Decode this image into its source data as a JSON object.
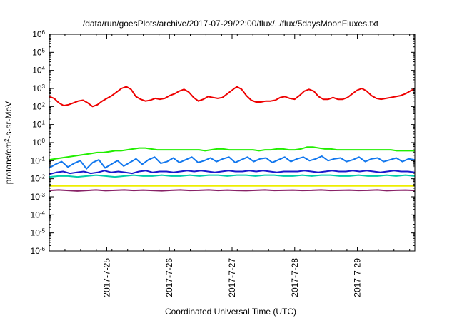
{
  "chart_data": {
    "type": "line",
    "title": "/data/run/goesPlots/archive/2017-07-29/22:00/flux/../flux/5daysMoonFluxes.txt",
    "xlabel": "Coordinated Universal Time (UTC)",
    "ylabel": "protons/cm2-s-sr-MeV",
    "ylabel_parts": {
      "pre": "protons/cm",
      "sup": "2",
      "post": "-s-sr-MeV"
    },
    "yscale": "log",
    "ylim_exponents": [
      -6,
      6
    ],
    "yticks": [
      {
        "mantissa": "10",
        "exp": "-6"
      },
      {
        "mantissa": "10",
        "exp": "-5"
      },
      {
        "mantissa": "10",
        "exp": "-4"
      },
      {
        "mantissa": "10",
        "exp": "-3"
      },
      {
        "mantissa": "10",
        "exp": "-2"
      },
      {
        "mantissa": "10",
        "exp": "-1"
      },
      {
        "mantissa": "10",
        "exp": "0"
      },
      {
        "mantissa": "10",
        "exp": "1"
      },
      {
        "mantissa": "10",
        "exp": "2"
      },
      {
        "mantissa": "10",
        "exp": "3"
      },
      {
        "mantissa": "10",
        "exp": "4"
      },
      {
        "mantissa": "10",
        "exp": "5"
      },
      {
        "mantissa": "10",
        "exp": "6"
      }
    ],
    "xlim": [
      "2017-07-24 02:00",
      "2017-07-29 22:00"
    ],
    "xticks": [
      "2017-7-25",
      "2017-7-26",
      "2017-7-27",
      "2017-7-28",
      "2017-7-29"
    ],
    "grid": false,
    "series": [
      {
        "color": "#ee0000",
        "values_log10": [
          2.55,
          2.45,
          2.2,
          2.05,
          2.1,
          2.2,
          2.3,
          2.35,
          2.2,
          2.0,
          2.1,
          2.3,
          2.45,
          2.6,
          2.8,
          3.0,
          3.1,
          2.95,
          2.55,
          2.4,
          2.3,
          2.35,
          2.45,
          2.4,
          2.45,
          2.6,
          2.7,
          2.85,
          2.95,
          2.8,
          2.5,
          2.3,
          2.4,
          2.55,
          2.5,
          2.45,
          2.5,
          2.7,
          2.9,
          3.1,
          2.95,
          2.6,
          2.35,
          2.25,
          2.25,
          2.3,
          2.3,
          2.35,
          2.5,
          2.55,
          2.45,
          2.4,
          2.6,
          2.85,
          2.95,
          2.85,
          2.55,
          2.4,
          2.4,
          2.5,
          2.4,
          2.4,
          2.5,
          2.7,
          2.9,
          3.0,
          2.85,
          2.6,
          2.45,
          2.4,
          2.45,
          2.5,
          2.55,
          2.6,
          2.7,
          2.85,
          3.0
        ]
      },
      {
        "color": "#22ee00",
        "values_log10": [
          -0.95,
          -0.9,
          -0.85,
          -0.8,
          -0.75,
          -0.7,
          -0.65,
          -0.6,
          -0.55,
          -0.55,
          -0.5,
          -0.45,
          -0.45,
          -0.4,
          -0.35,
          -0.3,
          -0.3,
          -0.35,
          -0.4,
          -0.4,
          -0.4,
          -0.4,
          -0.4,
          -0.4,
          -0.4,
          -0.4,
          -0.45,
          -0.4,
          -0.35,
          -0.35,
          -0.4,
          -0.4,
          -0.4,
          -0.4,
          -0.4,
          -0.45,
          -0.4,
          -0.4,
          -0.35,
          -0.35,
          -0.4,
          -0.4,
          -0.35,
          -0.25,
          -0.25,
          -0.3,
          -0.35,
          -0.35,
          -0.4,
          -0.4,
          -0.4,
          -0.4,
          -0.4,
          -0.4,
          -0.4,
          -0.4,
          -0.4,
          -0.4,
          -0.45,
          -0.45,
          -0.45,
          -0.45
        ]
      },
      {
        "color": "#1177ee",
        "values_log10": [
          -1.4,
          -1.2,
          -1.05,
          -1.35,
          -1.15,
          -1.0,
          -1.45,
          -1.1,
          -0.95,
          -1.4,
          -1.2,
          -1.0,
          -1.3,
          -1.1,
          -0.9,
          -1.2,
          -0.95,
          -0.8,
          -1.15,
          -1.05,
          -0.85,
          -1.1,
          -0.95,
          -0.8,
          -1.1,
          -1.0,
          -0.85,
          -1.05,
          -0.9,
          -0.8,
          -1.1,
          -0.95,
          -0.8,
          -1.05,
          -0.9,
          -0.85,
          -1.1,
          -0.95,
          -0.8,
          -1.05,
          -0.9,
          -0.8,
          -1.0,
          -0.9,
          -0.75,
          -1.0,
          -0.9,
          -0.85,
          -1.05,
          -0.95,
          -0.8,
          -1.05,
          -0.9,
          -0.85,
          -1.05,
          -0.95,
          -0.85,
          -1.05,
          -0.9,
          -0.95
        ]
      },
      {
        "color": "#1a1acc",
        "values_log10": [
          -1.75,
          -1.65,
          -1.6,
          -1.7,
          -1.65,
          -1.6,
          -1.7,
          -1.65,
          -1.55,
          -1.65,
          -1.6,
          -1.65,
          -1.7,
          -1.6,
          -1.55,
          -1.65,
          -1.6,
          -1.6,
          -1.65,
          -1.6,
          -1.55,
          -1.6,
          -1.55,
          -1.6,
          -1.65,
          -1.6,
          -1.55,
          -1.6,
          -1.6,
          -1.55,
          -1.6,
          -1.55,
          -1.6,
          -1.65,
          -1.6,
          -1.6,
          -1.6,
          -1.55,
          -1.6,
          -1.65,
          -1.6,
          -1.55,
          -1.6,
          -1.6,
          -1.55,
          -1.6,
          -1.55,
          -1.6,
          -1.65,
          -1.6,
          -1.55,
          -1.6,
          -1.6,
          -1.65
        ]
      },
      {
        "color": "#00ccaa",
        "values_log10": [
          -1.9,
          -1.85,
          -1.85,
          -1.9,
          -1.85,
          -1.8,
          -1.85,
          -1.9,
          -1.85,
          -1.8,
          -1.85,
          -1.85,
          -1.8,
          -1.85,
          -1.85,
          -1.8,
          -1.85,
          -1.8,
          -1.8,
          -1.85,
          -1.8,
          -1.8,
          -1.85,
          -1.8,
          -1.8,
          -1.85,
          -1.85,
          -1.8,
          -1.85,
          -1.8,
          -1.8,
          -1.85,
          -1.85,
          -1.8,
          -1.85,
          -1.85,
          -1.8,
          -1.85,
          -1.8,
          -1.85
        ]
      },
      {
        "color": "#eeee00",
        "values_log10": [
          -2.4,
          -2.4,
          -2.4,
          -2.4,
          -2.4,
          -2.4,
          -2.4,
          -2.4,
          -2.4,
          -2.4,
          -2.4,
          -2.4,
          -2.4,
          -2.4,
          -2.4,
          -2.4,
          -2.4,
          -2.4,
          -2.4,
          -2.4
        ]
      },
      {
        "color": "#882266",
        "values_log10": [
          -2.65,
          -2.62,
          -2.65,
          -2.68,
          -2.65,
          -2.62,
          -2.66,
          -2.64,
          -2.62,
          -2.65,
          -2.63,
          -2.65,
          -2.67,
          -2.64,
          -2.62,
          -2.65,
          -2.64,
          -2.62,
          -2.65,
          -2.63,
          -2.65,
          -2.66,
          -2.64,
          -2.62,
          -2.65,
          -2.64,
          -2.63,
          -2.65,
          -2.64,
          -2.62,
          -2.65,
          -2.64,
          -2.63,
          -2.65,
          -2.64,
          -2.62,
          -2.66,
          -2.64,
          -2.63,
          -2.65
        ]
      }
    ]
  }
}
